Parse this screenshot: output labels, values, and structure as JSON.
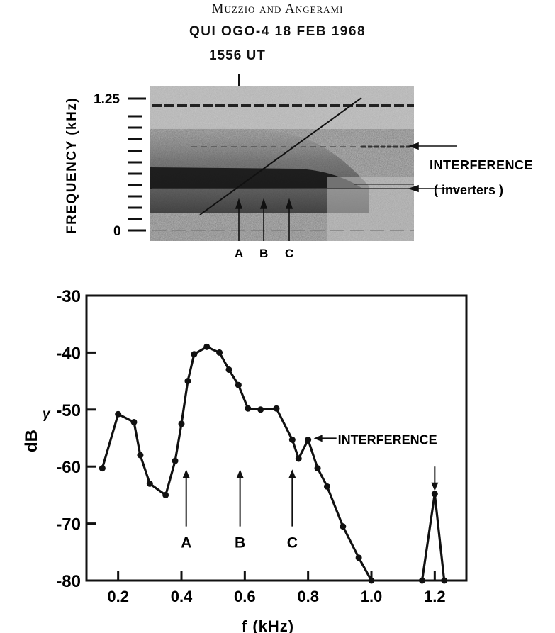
{
  "header": {
    "authors": "Muzzio and Angerami",
    "subtitle": "QUI  OGO-4  18 FEB 1968",
    "time_label": "1556 UT"
  },
  "spectrogram": {
    "ylabel": "FREQUENCY (kHz)",
    "tick_top": "1.25",
    "tick_bottom": "0",
    "markers": [
      "A",
      "B",
      "C"
    ],
    "interference_label": "INTERFERENCE",
    "inverters_label": "( inverters )"
  },
  "chart_data": {
    "type": "line",
    "xlabel": "f (kHz)",
    "ylabel": "dB",
    "ylabel_sub": "γ",
    "xlim": [
      0.1,
      1.3
    ],
    "ylim": [
      -80,
      -30
    ],
    "xticks": [
      0.2,
      0.4,
      0.6,
      0.8,
      1.0,
      1.2
    ],
    "xtick_labels": [
      "0.2",
      "0.4",
      "0.6",
      "0.8",
      "1.0",
      "1.2"
    ],
    "yticks": [
      -30,
      -40,
      -50,
      -60,
      -70,
      -80
    ],
    "ytick_labels": [
      "-30",
      "-40",
      "-50",
      "-60",
      "-70",
      "-80"
    ],
    "series": [
      {
        "x": [
          0.15,
          0.2,
          0.25,
          0.27,
          0.3,
          0.35,
          0.38,
          0.4,
          0.42,
          0.44,
          0.48,
          0.52,
          0.55,
          0.58,
          0.61,
          0.65,
          0.7,
          0.75,
          0.77,
          0.8,
          0.83,
          0.86,
          0.91,
          0.96,
          1.0
        ],
        "y": [
          -60.3,
          -50.8,
          -52.2,
          -58.0,
          -63.0,
          -65.0,
          -59.0,
          -52.5,
          -45.0,
          -40.3,
          -39.0,
          -40.0,
          -43.0,
          -45.7,
          -49.8,
          -50.0,
          -49.8,
          -55.3,
          -58.6,
          -55.3,
          -60.3,
          -63.5,
          -70.5,
          -76.0,
          -80.0
        ]
      },
      {
        "x": [
          1.16,
          1.2,
          1.23
        ],
        "y": [
          -80.0,
          -64.8,
          -80.0
        ]
      }
    ],
    "annotations": [
      {
        "text": "A",
        "x": 0.415,
        "y_from": -60.5,
        "y_to": -70.5
      },
      {
        "text": "B",
        "x": 0.585,
        "y_from": -60.5,
        "y_to": -70.5
      },
      {
        "text": "C",
        "x": 0.75,
        "y_from": -60.5,
        "y_to": -70.5
      },
      {
        "text": "INTERFERENCE",
        "x": 0.8,
        "y": -55.3
      },
      {
        "text": "",
        "x": 1.2,
        "y_from": -60.0,
        "y_to": -64.3
      }
    ]
  }
}
